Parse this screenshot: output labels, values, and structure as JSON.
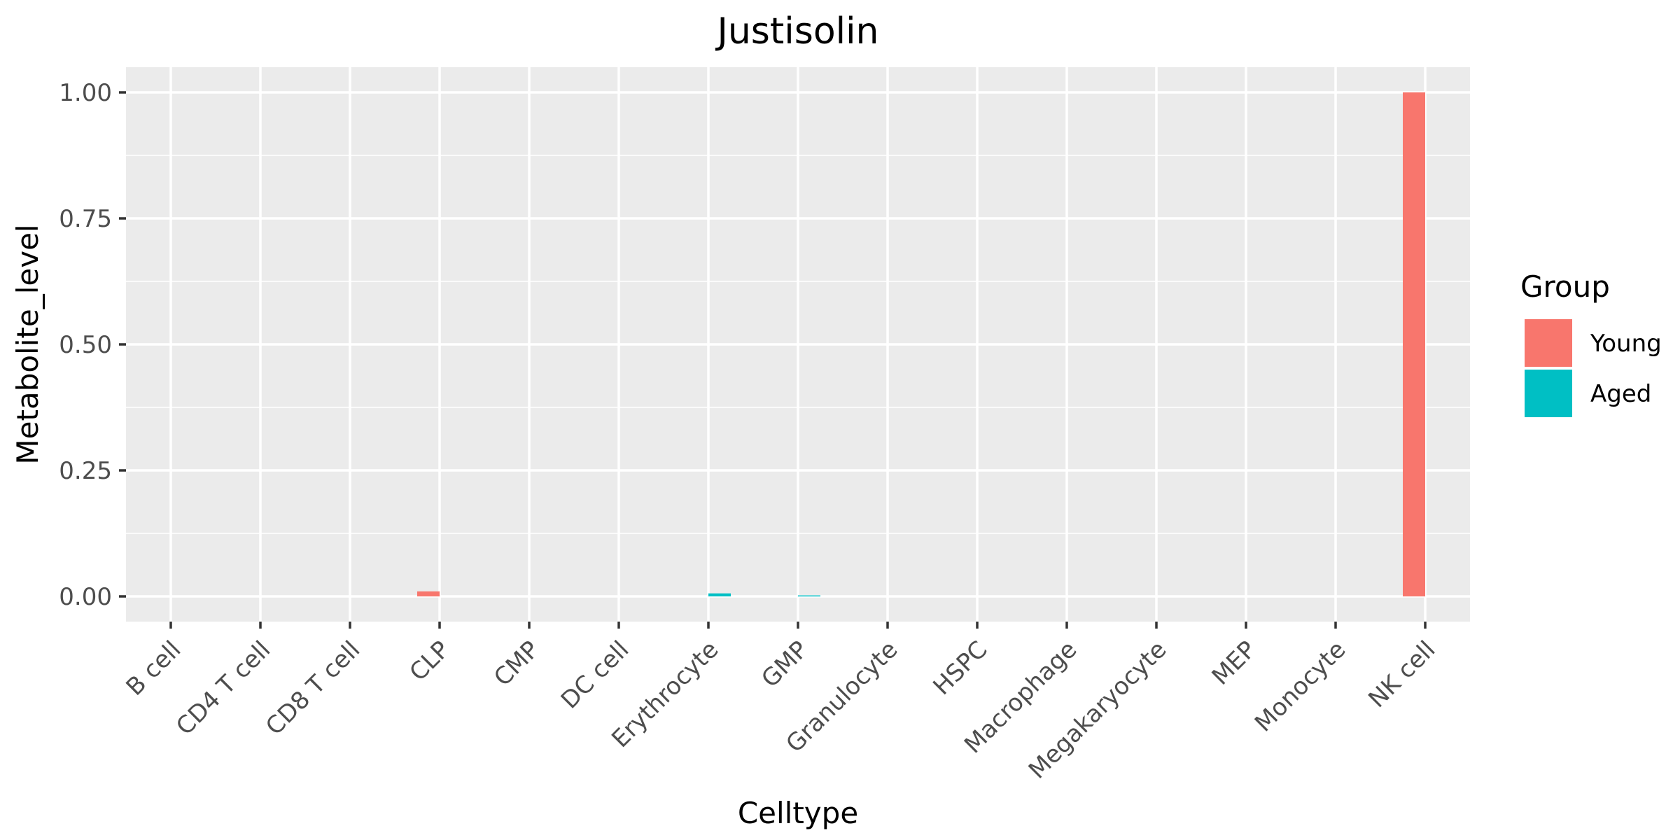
{
  "chart_data": {
    "type": "bar",
    "title": "Justisolin",
    "xlabel": "Celltype",
    "ylabel": "Metabolite_level",
    "categories": [
      "B cell",
      "CD4 T cell",
      "CD8 T cell",
      "CLP",
      "CMP",
      "DC cell",
      "Erythrocyte",
      "GMP",
      "Granulocyte",
      "HSPC",
      "Macrophage",
      "Megakaryocyte",
      "MEP",
      "Monocyte",
      "NK cell"
    ],
    "series": [
      {
        "name": "Young",
        "color": "#F8766D",
        "values": [
          0,
          0,
          0,
          0.01,
          0,
          0,
          0,
          0,
          0,
          0,
          0,
          0,
          0,
          0,
          1.0
        ]
      },
      {
        "name": "Aged",
        "color": "#00BFC4",
        "values": [
          0,
          0,
          0,
          0,
          0,
          0,
          0.006,
          0.002,
          0,
          0,
          0,
          0,
          0,
          0,
          0
        ]
      }
    ],
    "ylim": [
      -0.05,
      1.05
    ],
    "yticks": [
      0,
      0.25,
      0.5,
      0.75,
      1.0
    ],
    "ytick_labels": [
      "0.00",
      "0.25",
      "0.50",
      "0.75",
      "1.00"
    ],
    "grid": true,
    "legend": {
      "title": "Group",
      "position": "right"
    }
  }
}
